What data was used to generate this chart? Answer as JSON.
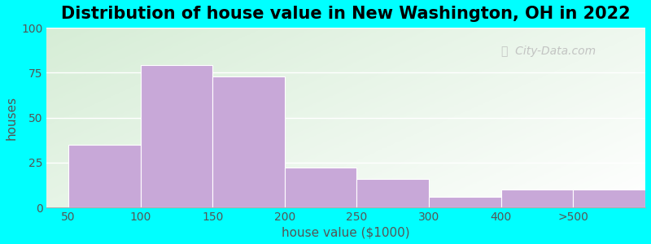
{
  "title": "Distribution of house value in New Washington, OH in 2022",
  "xlabel": "house value ($1000)",
  "ylabel": "houses",
  "bar_labels": [
    "50",
    "100",
    "150",
    "200",
    "250",
    "300",
    "400",
    ">500"
  ],
  "bar_values": [
    35,
    79,
    73,
    22,
    16,
    6,
    10,
    10
  ],
  "bar_color": "#C8A8D8",
  "bar_edge_color": "#FFFFFF",
  "ylim": [
    0,
    100
  ],
  "yticks": [
    0,
    25,
    50,
    75,
    100
  ],
  "figure_bg": "#00FFFF",
  "grid_color": "#FFFFFF",
  "title_fontsize": 15,
  "axis_label_fontsize": 11,
  "tick_fontsize": 10,
  "watermark_text": "City-Data.com",
  "watermark_color": "#BBBBBB",
  "bg_colors": [
    "#D4ECD4",
    "#E8F5E8",
    "#F4FAF4",
    "#FAFFF8",
    "#FFFFFF"
  ]
}
